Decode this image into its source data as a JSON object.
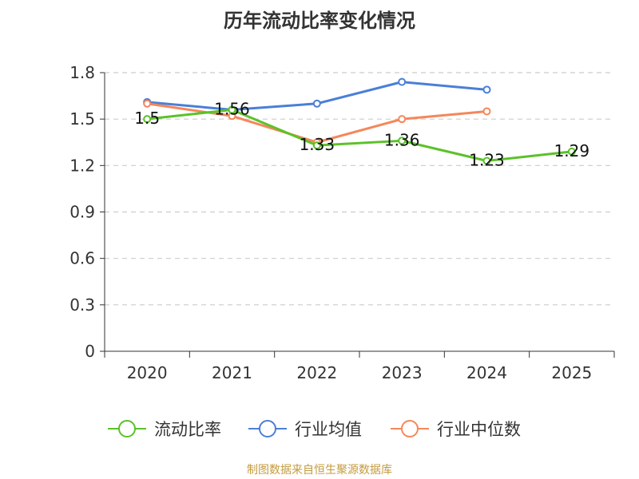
{
  "chart_data": {
    "type": "line",
    "title": "历年流动比率变化情况",
    "xlabel": "",
    "ylabel": "",
    "categories": [
      "2020",
      "2021",
      "2022",
      "2023",
      "2024",
      "2025"
    ],
    "ylim": [
      0,
      1.8
    ],
    "yticks": [
      "0",
      "0.3",
      "0.6",
      "0.9",
      "1.2",
      "1.5",
      "1.8"
    ],
    "grid": true,
    "legend_position": "bottom",
    "series": [
      {
        "name": "流动比率",
        "color": "#5ac229",
        "values": [
          1.5,
          1.56,
          1.33,
          1.36,
          1.23,
          1.29
        ],
        "labels": [
          "1.5",
          "1.56",
          "1.33",
          "1.36",
          "1.23",
          "1.29"
        ]
      },
      {
        "name": "行业均值",
        "color": "#4a7fd8",
        "values": [
          1.61,
          1.56,
          1.6,
          1.74,
          1.69,
          null
        ],
        "labels": []
      },
      {
        "name": "行业中位数",
        "color": "#f5875a",
        "values": [
          1.6,
          1.52,
          1.35,
          1.5,
          1.55,
          null
        ],
        "labels": []
      }
    ]
  },
  "footer": {
    "source": "制图数据来自恒生聚源数据库"
  }
}
